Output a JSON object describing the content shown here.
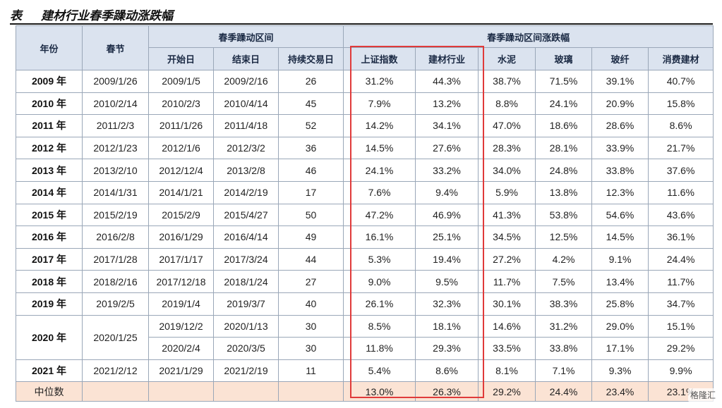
{
  "title": {
    "tag": "表",
    "text": "建材行业春季躁动涨跌幅"
  },
  "headers": {
    "year": "年份",
    "spring_festival": "春节",
    "group_interval": "春季躁动区间",
    "group_returns": "春季躁动区间涨跌幅",
    "start": "开始日",
    "end": "结束日",
    "days": "持续交易日",
    "sh_index": "上证指数",
    "building_materials": "建材行业",
    "cement": "水泥",
    "glass": "玻璃",
    "fiberglass": "玻纤",
    "consumer_bm": "消费建材"
  },
  "rows": [
    {
      "year": "2009 年",
      "festival": "2009/1/26",
      "start": "2009/1/5",
      "end": "2009/2/16",
      "days": "26",
      "sh": "31.2%",
      "bm": "44.3%",
      "cement": "38.7%",
      "glass": "71.5%",
      "fiber": "39.1%",
      "consumer": "40.7%"
    },
    {
      "year": "2010 年",
      "festival": "2010/2/14",
      "start": "2010/2/3",
      "end": "2010/4/14",
      "days": "45",
      "sh": "7.9%",
      "bm": "13.2%",
      "cement": "8.8%",
      "glass": "24.1%",
      "fiber": "20.9%",
      "consumer": "15.8%"
    },
    {
      "year": "2011 年",
      "festival": "2011/2/3",
      "start": "2011/1/26",
      "end": "2011/4/18",
      "days": "52",
      "sh": "14.2%",
      "bm": "34.1%",
      "cement": "47.0%",
      "glass": "18.6%",
      "fiber": "28.6%",
      "consumer": "8.6%"
    },
    {
      "year": "2012 年",
      "festival": "2012/1/23",
      "start": "2012/1/6",
      "end": "2012/3/2",
      "days": "36",
      "sh": "14.5%",
      "bm": "27.6%",
      "cement": "28.3%",
      "glass": "28.1%",
      "fiber": "33.9%",
      "consumer": "21.7%"
    },
    {
      "year": "2013 年",
      "festival": "2013/2/10",
      "start": "2012/12/4",
      "end": "2013/2/8",
      "days": "46",
      "sh": "24.1%",
      "bm": "33.2%",
      "cement": "34.0%",
      "glass": "24.8%",
      "fiber": "33.8%",
      "consumer": "37.6%"
    },
    {
      "year": "2014 年",
      "festival": "2014/1/31",
      "start": "2014/1/21",
      "end": "2014/2/19",
      "days": "17",
      "sh": "7.6%",
      "bm": "9.4%",
      "cement": "5.9%",
      "glass": "13.8%",
      "fiber": "12.3%",
      "consumer": "11.6%"
    },
    {
      "year": "2015 年",
      "festival": "2015/2/19",
      "start": "2015/2/9",
      "end": "2015/4/27",
      "days": "50",
      "sh": "47.2%",
      "bm": "46.9%",
      "cement": "41.3%",
      "glass": "53.8%",
      "fiber": "54.6%",
      "consumer": "43.6%"
    },
    {
      "year": "2016 年",
      "festival": "2016/2/8",
      "start": "2016/1/29",
      "end": "2016/4/14",
      "days": "49",
      "sh": "16.1%",
      "bm": "25.1%",
      "cement": "34.5%",
      "glass": "12.5%",
      "fiber": "14.5%",
      "consumer": "36.1%"
    },
    {
      "year": "2017 年",
      "festival": "2017/1/28",
      "start": "2017/1/17",
      "end": "2017/3/24",
      "days": "44",
      "sh": "5.3%",
      "bm": "19.4%",
      "cement": "27.2%",
      "glass": "4.2%",
      "fiber": "9.1%",
      "consumer": "24.4%"
    },
    {
      "year": "2018 年",
      "festival": "2018/2/16",
      "start": "2017/12/18",
      "end": "2018/1/24",
      "days": "27",
      "sh": "9.0%",
      "bm": "9.5%",
      "cement": "11.7%",
      "glass": "7.5%",
      "fiber": "13.4%",
      "consumer": "11.7%"
    },
    {
      "year": "2019 年",
      "festival": "2019/2/5",
      "start": "2019/1/4",
      "end": "2019/3/7",
      "days": "40",
      "sh": "26.1%",
      "bm": "32.3%",
      "cement": "30.1%",
      "glass": "38.3%",
      "fiber": "25.8%",
      "consumer": "34.7%"
    },
    {
      "year": "2020 年",
      "festival": "2020/1/25",
      "start": "2019/12/2",
      "end": "2020/1/13",
      "days": "30",
      "sh": "8.5%",
      "bm": "18.1%",
      "cement": "14.6%",
      "glass": "31.2%",
      "fiber": "29.0%",
      "consumer": "15.1%"
    },
    {
      "start": "2020/2/4",
      "end": "2020/3/5",
      "days": "30",
      "sh": "11.8%",
      "bm": "29.3%",
      "cement": "33.5%",
      "glass": "33.8%",
      "fiber": "17.1%",
      "consumer": "29.2%"
    },
    {
      "year": "2021 年",
      "festival": "2021/2/12",
      "start": "2021/1/29",
      "end": "2021/2/19",
      "days": "11",
      "sh": "5.4%",
      "bm": "8.6%",
      "cement": "8.1%",
      "glass": "7.1%",
      "fiber": "9.3%",
      "consumer": "9.9%"
    }
  ],
  "median": {
    "label": "中位数",
    "sh": "13.0%",
    "bm": "26.3%",
    "cement": "29.2%",
    "glass": "24.4%",
    "fiber": "23.4%",
    "consumer": "23.1%"
  },
  "watermark": "格隆汇"
}
